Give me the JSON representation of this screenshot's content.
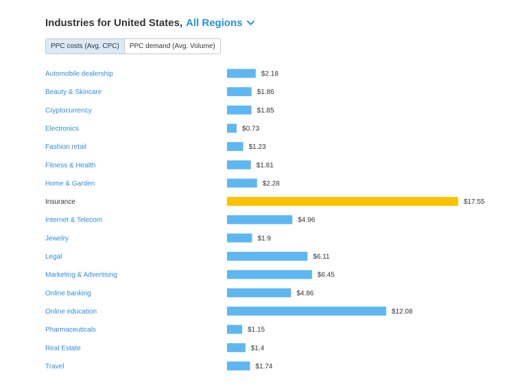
{
  "header": {
    "title_prefix": "Industries for United States,",
    "region_label": "All Regions",
    "region_icon": "chevron-down-icon"
  },
  "toggle": {
    "options": [
      {
        "label": "PPC costs (Avg. CPC)",
        "active": true
      },
      {
        "label": "PPC demand (Avg. Volume)",
        "active": false
      }
    ]
  },
  "colors": {
    "bar": "#5fb7f1",
    "highlight_bar": "#ffc200",
    "link": "#2a8de3",
    "highlight_label": "#333333",
    "value_text": "#333333"
  },
  "chart_data": {
    "type": "bar",
    "orientation": "horizontal",
    "categories": [
      "Automobile dealership",
      "Beauty & Skincare",
      "Cryptocurrency",
      "Electronics",
      "Fashion retail",
      "Fitness & Health",
      "Home & Garden",
      "Insurance",
      "Internet & Telecom",
      "Jewelry",
      "Legal",
      "Marketing & Advertising",
      "Online banking",
      "Online education",
      "Pharmaceuticals",
      "Real Estate",
      "Travel"
    ],
    "values": [
      2.18,
      1.86,
      1.85,
      0.73,
      1.23,
      1.81,
      2.28,
      17.55,
      4.96,
      1.9,
      6.11,
      6.45,
      4.86,
      12.08,
      1.15,
      1.4,
      1.74
    ],
    "value_labels": [
      "$2.18",
      "$1.86",
      "$1.85",
      "$0.73",
      "$1.23",
      "$1.81",
      "$2.28",
      "$17.55",
      "$4.96",
      "$1.9",
      "$6.11",
      "$6.45",
      "$4.86",
      "$12.08",
      "$1.15",
      "$1.4",
      "$1.74"
    ],
    "highlighted": "Insurance",
    "xlim": [
      0,
      17.55
    ],
    "grid": false,
    "legend": "none"
  }
}
